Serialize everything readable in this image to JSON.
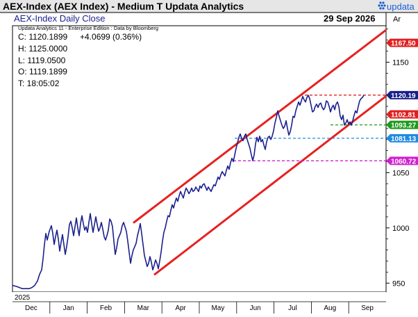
{
  "header": {
    "title": "AEX-Index (AEX Index) - Medium T  Updata Analytics",
    "brand": "updata",
    "date": "29 Sep 2026",
    "axis_unit": "Ar"
  },
  "panel": {
    "subtitle": "AEX-Index Daily Close",
    "source": "Updata Analytics 11 - Enterprise Edition : Data by Bloomberg",
    "ohlc": {
      "close": "C: 1120.1899",
      "change": "+4.0699 (0.36%)",
      "high": "H: 1125.0000",
      "low": "L: 1119.0500",
      "open": "O: 1119.1899",
      "time": "T: 18:05:02"
    }
  },
  "chart_data": {
    "type": "line",
    "year_label": "2025",
    "x_labels": [
      "Dec",
      "Jan",
      "Feb",
      "Mar",
      "Apr",
      "May",
      "Jun",
      "Jul",
      "Aug",
      "Sep"
    ],
    "y_ticks": [
      950,
      1000,
      1050,
      1150
    ],
    "ylim": [
      942,
      1183
    ],
    "series": [
      {
        "color": "#1a1f8c",
        "values": [
          [
            0,
            948
          ],
          [
            6,
            947
          ],
          [
            10,
            946
          ],
          [
            14,
            945
          ],
          [
            19,
            945
          ],
          [
            24,
            945
          ],
          [
            28,
            946
          ],
          [
            32,
            948
          ],
          [
            36,
            952
          ],
          [
            39,
            958
          ],
          [
            42,
            962
          ],
          [
            44,
            972
          ],
          [
            46,
            985
          ],
          [
            48,
            995
          ],
          [
            50,
            989
          ],
          [
            53,
            997
          ],
          [
            56,
            1002
          ],
          [
            58,
            995
          ],
          [
            60,
            985
          ],
          [
            62,
            992
          ],
          [
            64,
            998
          ],
          [
            66,
            990
          ],
          [
            68,
            979
          ],
          [
            70,
            987
          ],
          [
            72,
            994
          ],
          [
            74,
            985
          ],
          [
            76,
            976
          ],
          [
            78,
            983
          ],
          [
            80,
            992
          ],
          [
            82,
            1003
          ],
          [
            84,
            1006
          ],
          [
            86,
            1000
          ],
          [
            88,
            993
          ],
          [
            90,
            1001
          ],
          [
            92,
            1009
          ],
          [
            94,
            1000
          ],
          [
            96,
            993
          ],
          [
            98,
            1004
          ],
          [
            100,
            1011
          ],
          [
            102,
            1004
          ],
          [
            104,
            998
          ],
          [
            106,
            1001
          ],
          [
            108,
            996
          ],
          [
            110,
            1005
          ],
          [
            112,
            1013
          ],
          [
            114,
            1004
          ],
          [
            116,
            996
          ],
          [
            118,
            1003
          ],
          [
            120,
            1010
          ],
          [
            122,
            1003
          ],
          [
            124,
            997
          ],
          [
            126,
            1000
          ],
          [
            128,
            1005
          ],
          [
            130,
            999
          ],
          [
            132,
            992
          ],
          [
            134,
            989
          ],
          [
            136,
            993
          ],
          [
            138,
            998
          ],
          [
            140,
            1008
          ],
          [
            142,
            1006
          ],
          [
            144,
            1001
          ],
          [
            146,
            988
          ],
          [
            148,
            976
          ],
          [
            150,
            982
          ],
          [
            152,
            990
          ],
          [
            154,
            993
          ],
          [
            156,
            996
          ],
          [
            158,
            1002
          ],
          [
            160,
            1005
          ],
          [
            162,
            1001
          ],
          [
            164,
            997
          ],
          [
            166,
            988
          ],
          [
            168,
            978
          ],
          [
            170,
            968
          ],
          [
            172,
            975
          ],
          [
            174,
            980
          ],
          [
            176,
            983
          ],
          [
            178,
            986
          ],
          [
            180,
            993
          ],
          [
            182,
            998
          ],
          [
            184,
            1004
          ],
          [
            186,
            995
          ],
          [
            188,
            985
          ],
          [
            190,
            975
          ],
          [
            192,
            970
          ],
          [
            194,
            965
          ],
          [
            196,
            968
          ],
          [
            198,
            974
          ],
          [
            200,
            969
          ],
          [
            202,
            962
          ],
          [
            204,
            966
          ],
          [
            206,
            971
          ],
          [
            208,
            968
          ],
          [
            210,
            963
          ],
          [
            212,
            970
          ],
          [
            214,
            978
          ],
          [
            216,
            988
          ],
          [
            218,
            996
          ],
          [
            220,
            1000
          ],
          [
            222,
            1006
          ],
          [
            224,
            1011
          ],
          [
            226,
            1010
          ],
          [
            228,
            1016
          ],
          [
            230,
            1021
          ],
          [
            232,
            1018
          ],
          [
            234,
            1023
          ],
          [
            236,
            1027
          ],
          [
            238,
            1024
          ],
          [
            240,
            1029
          ],
          [
            242,
            1033
          ],
          [
            244,
            1030
          ],
          [
            246,
            1027
          ],
          [
            248,
            1032
          ],
          [
            250,
            1036
          ],
          [
            252,
            1034
          ],
          [
            254,
            1031
          ],
          [
            256,
            1033
          ],
          [
            258,
            1036
          ],
          [
            260,
            1033
          ],
          [
            262,
            1034
          ],
          [
            264,
            1037
          ],
          [
            266,
            1035
          ],
          [
            268,
            1033
          ],
          [
            270,
            1038
          ],
          [
            272,
            1036
          ],
          [
            274,
            1039
          ],
          [
            276,
            1040
          ],
          [
            278,
            1037
          ],
          [
            280,
            1034
          ],
          [
            282,
            1037
          ],
          [
            284,
            1035
          ],
          [
            286,
            1033
          ],
          [
            288,
            1036
          ],
          [
            290,
            1039
          ],
          [
            292,
            1038
          ],
          [
            294,
            1042
          ],
          [
            296,
            1046
          ],
          [
            298,
            1044
          ],
          [
            300,
            1048
          ],
          [
            302,
            1051
          ],
          [
            304,
            1049
          ],
          [
            306,
            1047
          ],
          [
            308,
            1052
          ],
          [
            310,
            1056
          ],
          [
            312,
            1053
          ],
          [
            314,
            1059
          ],
          [
            316,
            1063
          ],
          [
            318,
            1060
          ],
          [
            320,
            1066
          ],
          [
            322,
            1072
          ],
          [
            324,
            1077
          ],
          [
            326,
            1082
          ],
          [
            328,
            1085
          ],
          [
            330,
            1081
          ],
          [
            332,
            1079
          ],
          [
            334,
            1083
          ],
          [
            336,
            1085
          ],
          [
            338,
            1080
          ],
          [
            340,
            1076
          ],
          [
            342,
            1072
          ],
          [
            344,
            1066
          ],
          [
            346,
            1061
          ],
          [
            348,
            1066
          ],
          [
            350,
            1076
          ],
          [
            352,
            1082
          ],
          [
            354,
            1078
          ],
          [
            356,
            1083
          ],
          [
            358,
            1078
          ],
          [
            360,
            1080
          ],
          [
            362,
            1075
          ],
          [
            364,
            1071
          ],
          [
            366,
            1078
          ],
          [
            368,
            1082
          ],
          [
            370,
            1083
          ],
          [
            372,
            1080
          ],
          [
            374,
            1083
          ],
          [
            376,
            1088
          ],
          [
            378,
            1095
          ],
          [
            380,
            1100
          ],
          [
            382,
            1106
          ],
          [
            384,
            1101
          ],
          [
            386,
            1097
          ],
          [
            388,
            1093
          ],
          [
            390,
            1090
          ],
          [
            392,
            1092
          ],
          [
            394,
            1097
          ],
          [
            396,
            1090
          ],
          [
            398,
            1084
          ],
          [
            400,
            1087
          ],
          [
            402,
            1093
          ],
          [
            404,
            1101
          ],
          [
            406,
            1100
          ],
          [
            408,
            1106
          ],
          [
            410,
            1110
          ],
          [
            412,
            1114
          ],
          [
            414,
            1111
          ],
          [
            416,
            1115
          ],
          [
            418,
            1119
          ],
          [
            420,
            1116
          ],
          [
            422,
            1114
          ],
          [
            424,
            1118
          ],
          [
            426,
            1120
          ],
          [
            428,
            1117
          ],
          [
            430,
            1111
          ],
          [
            432,
            1105
          ],
          [
            434,
            1106
          ],
          [
            436,
            1110
          ],
          [
            438,
            1112
          ],
          [
            440,
            1109
          ],
          [
            442,
            1112
          ],
          [
            444,
            1113
          ],
          [
            446,
            1109
          ],
          [
            448,
            1107
          ],
          [
            450,
            1109
          ],
          [
            452,
            1115
          ],
          [
            454,
            1114
          ],
          [
            456,
            1110
          ],
          [
            458,
            1105
          ],
          [
            460,
            1109
          ],
          [
            462,
            1111
          ],
          [
            464,
            1107
          ],
          [
            466,
            1112
          ],
          [
            468,
            1114
          ],
          [
            470,
            1110
          ],
          [
            472,
            1101
          ],
          [
            474,
            1098
          ],
          [
            476,
            1102
          ],
          [
            478,
            1093
          ],
          [
            480,
            1095
          ],
          [
            482,
            1098
          ],
          [
            484,
            1094
          ],
          [
            486,
            1096
          ],
          [
            488,
            1093
          ],
          [
            490,
            1097
          ],
          [
            492,
            1102
          ],
          [
            494,
            1106
          ],
          [
            496,
            1104
          ],
          [
            498,
            1110
          ],
          [
            500,
            1115
          ],
          [
            502,
            1117
          ],
          [
            504,
            1118
          ],
          [
            506,
            1120.19
          ]
        ]
      }
    ],
    "channel_lines": [
      {
        "color": "#e82020",
        "x": [
          175,
          546
        ],
        "y": [
          1005,
          1183
        ]
      },
      {
        "color": "#e82020",
        "x": [
          205,
          558
        ],
        "y": [
          958,
          1129
        ]
      }
    ],
    "levels": [
      {
        "value": 1167.5,
        "label": "1167.50",
        "color": "#e02020",
        "line": false
      },
      {
        "value": 1120.19,
        "label": "1120.19",
        "color": "#1a1f8c",
        "line": false
      },
      {
        "value": 1102.81,
        "label": "1102.81",
        "color": "#e02020",
        "line": false
      },
      {
        "value": 1093.27,
        "label": "1093.27",
        "color": "#1c9b1c",
        "line": true,
        "x_start": 458
      },
      {
        "value": 1081.13,
        "label": "1081.13",
        "color": "#1f8be0",
        "line": true,
        "x_start": 320
      },
      {
        "value": 1060.72,
        "label": "1060.72",
        "color": "#d020d0",
        "line": true,
        "x_start": 318
      }
    ],
    "resistance": {
      "value": 1120.19,
      "color": "#e02020",
      "x_start": 414
    }
  }
}
